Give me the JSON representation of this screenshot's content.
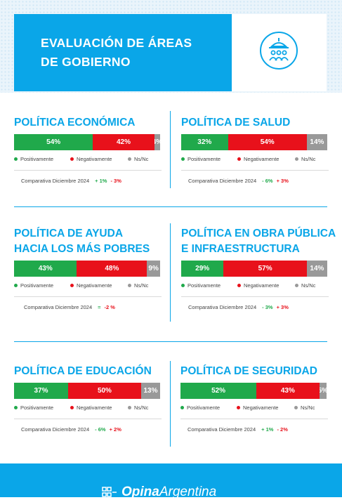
{
  "header": {
    "title_line1": "EVALUACIÓN DE ÁREAS",
    "title_line2": "DE GOBIERNO",
    "icon": "government-building-people-icon"
  },
  "colors": {
    "accent": "#0aa6e8",
    "positive": "#20a94b",
    "negative": "#e8111b",
    "nsnc": "#999999"
  },
  "legend": {
    "positive": "Positivamente",
    "negative": "Negativamente",
    "nsnc": "Ns/Nc"
  },
  "comparison_label": "Comparativa Diciembre 2024",
  "chart_data": [
    {
      "type": "bar",
      "stacked": true,
      "orientation": "horizontal",
      "title_lines": [
        "POLÍTICA ECONÓMICA"
      ],
      "series": [
        {
          "name": "Positivamente",
          "value": 54,
          "label": "54%"
        },
        {
          "name": "Negativamente",
          "value": 42,
          "label": "42%"
        },
        {
          "name": "Ns/Nc",
          "value": 4,
          "label": "4%"
        }
      ],
      "comparison": {
        "positive_change": "+ 1%",
        "negative_change": "- 3%"
      }
    },
    {
      "type": "bar",
      "stacked": true,
      "orientation": "horizontal",
      "title_lines": [
        "POLÍTICA DE SALUD"
      ],
      "series": [
        {
          "name": "Positivamente",
          "value": 32,
          "label": "32%"
        },
        {
          "name": "Negativamente",
          "value": 54,
          "label": "54%"
        },
        {
          "name": "Ns/Nc",
          "value": 14,
          "label": "14%"
        }
      ],
      "comparison": {
        "positive_change": "- 6%",
        "negative_change": "+ 3%"
      }
    },
    {
      "type": "bar",
      "stacked": true,
      "orientation": "horizontal",
      "title_lines": [
        "POLÍTICA DE AYUDA",
        "HACIA LOS MÁS POBRES"
      ],
      "series": [
        {
          "name": "Positivamente",
          "value": 43,
          "label": "43%"
        },
        {
          "name": "Negativamente",
          "value": 48,
          "label": "48%"
        },
        {
          "name": "Ns/Nc",
          "value": 9,
          "label": "9%"
        }
      ],
      "comparison": {
        "positive_change": "=",
        "negative_change": "-2 %"
      }
    },
    {
      "type": "bar",
      "stacked": true,
      "orientation": "horizontal",
      "title_lines": [
        "POLÍTICA EN OBRA PÚBLICA",
        "E INFRAESTRUCTURA"
      ],
      "series": [
        {
          "name": "Positivamente",
          "value": 29,
          "label": "29%"
        },
        {
          "name": "Negativamente",
          "value": 57,
          "label": "57%"
        },
        {
          "name": "Ns/Nc",
          "value": 14,
          "label": "14%"
        }
      ],
      "comparison": {
        "positive_change": "- 3%",
        "negative_change": "+ 3%"
      }
    },
    {
      "type": "bar",
      "stacked": true,
      "orientation": "horizontal",
      "title_lines": [
        "POLÍTICA DE EDUCACIÓN"
      ],
      "series": [
        {
          "name": "Positivamente",
          "value": 37,
          "label": "37%"
        },
        {
          "name": "Negativamente",
          "value": 50,
          "label": "50%"
        },
        {
          "name": "Ns/Nc",
          "value": 13,
          "label": "13%"
        }
      ],
      "comparison": {
        "positive_change": "- 6%",
        "negative_change": "+ 2%"
      }
    },
    {
      "type": "bar",
      "stacked": true,
      "orientation": "horizontal",
      "title_lines": [
        "POLÍTICA DE SEGURIDAD"
      ],
      "series": [
        {
          "name": "Positivamente",
          "value": 52,
          "label": "52%"
        },
        {
          "name": "Negativamente",
          "value": 43,
          "label": "43%"
        },
        {
          "name": "Ns/Nc",
          "value": 5,
          "label": "5%"
        }
      ],
      "comparison": {
        "positive_change": "+ 1%",
        "negative_change": "- 2%"
      }
    }
  ],
  "footer": {
    "brand_bold": "Opina",
    "brand_regular": "Argentina"
  }
}
